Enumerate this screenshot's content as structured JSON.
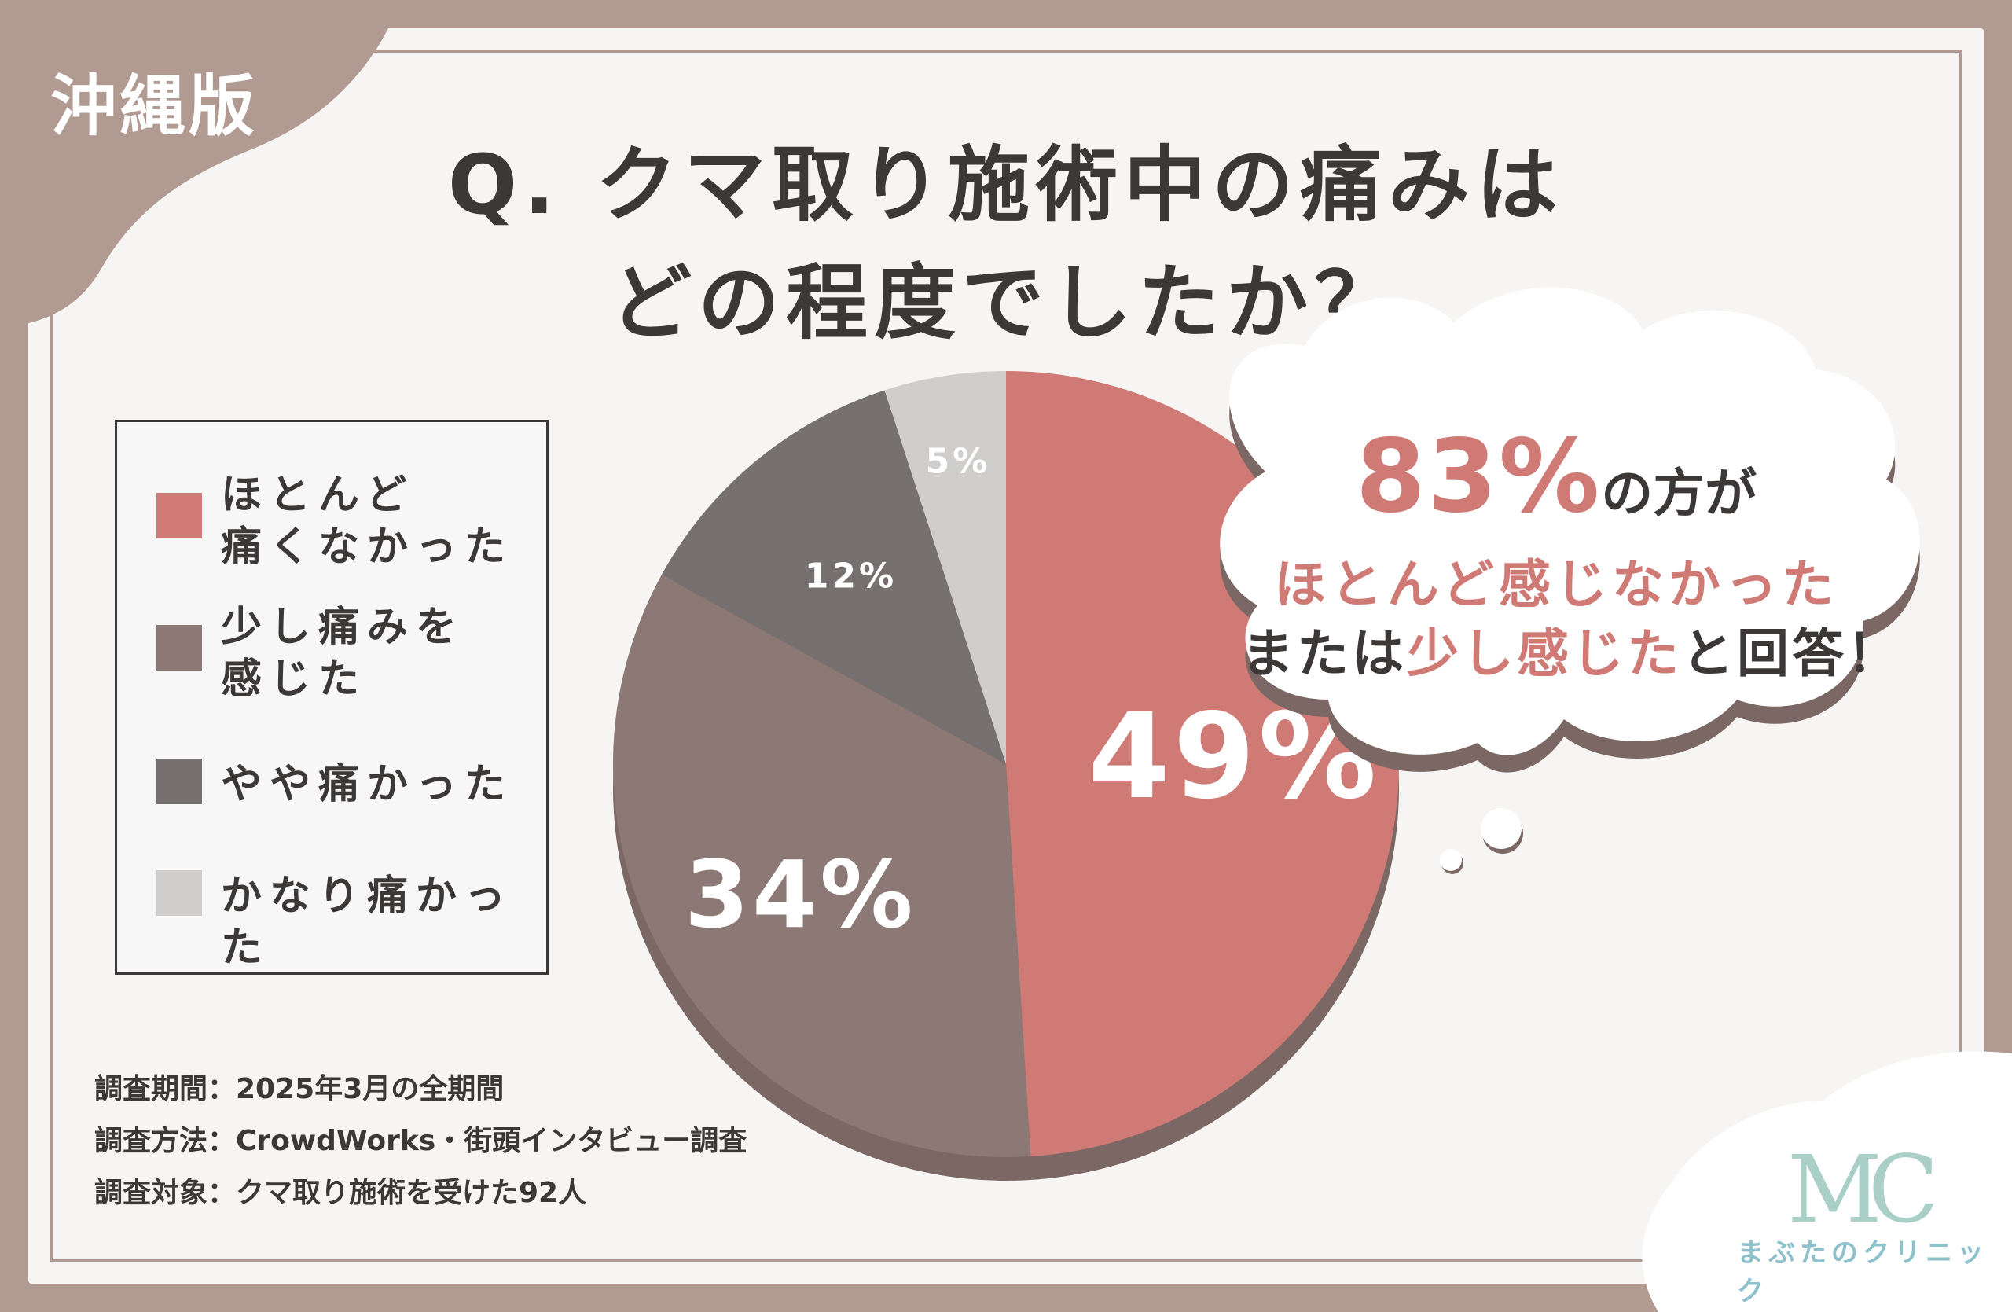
{
  "region_tag": "沖縄版",
  "title": {
    "line1": "Q. クマ取り施術中の痛みは",
    "line2": "どの程度でしたか？"
  },
  "chart_data": {
    "type": "pie",
    "categories": [
      "ほとんど痛くなかった",
      "少し痛みを感じた",
      "やや痛かった",
      "かなり痛かった"
    ],
    "values": [
      49,
      34,
      12,
      5
    ],
    "value_labels": [
      "49%",
      "34%",
      "12%",
      "5%"
    ],
    "colors": [
      "#d07a76",
      "#8c7875",
      "#767070",
      "#d0cecd"
    ],
    "legend_placement": "left"
  },
  "legend": [
    {
      "line1": "ほとんど",
      "line2": "痛くなかった",
      "color": "#d07a76"
    },
    {
      "line1": "少し痛みを",
      "line2": "感じた",
      "color": "#8c7875"
    },
    {
      "line1": "やや痛かった",
      "line2": "",
      "color": "#767070"
    },
    {
      "line1": "かなり痛かった",
      "line2": "",
      "color": "#d0cecd"
    }
  ],
  "bubble": {
    "big": "83%",
    "line1_rest": "の方が",
    "line2": "ほとんど感じなかった",
    "line3_a": "または",
    "line3_hl": "少し感じた",
    "line3_b": "と回答！"
  },
  "survey": {
    "period": "調査期間：2025年3月の全期間",
    "method": "調査方法：CrowdWorks・街頭インタビュー調査",
    "target": "調査対象：クマ取り施術を受けた92人"
  },
  "logo": {
    "mark": "MC",
    "name": "まぶたのクリニック"
  }
}
